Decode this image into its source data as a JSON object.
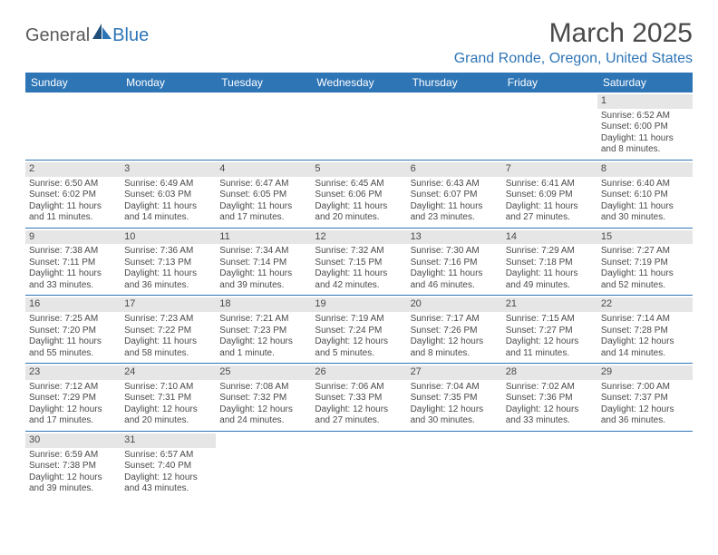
{
  "logo": {
    "text1": "General",
    "text2": "Blue"
  },
  "title": "March 2025",
  "location": "Grand Ronde, Oregon, United States",
  "colors": {
    "accent": "#2e75b6",
    "dayband": "#e6e6e6",
    "text": "#4a4a4a",
    "bg": "#ffffff"
  },
  "daynames": [
    "Sunday",
    "Monday",
    "Tuesday",
    "Wednesday",
    "Thursday",
    "Friday",
    "Saturday"
  ],
  "weeks": [
    [
      null,
      null,
      null,
      null,
      null,
      null,
      {
        "n": "1",
        "sr": "Sunrise: 6:52 AM",
        "ss": "Sunset: 6:00 PM",
        "d1": "Daylight: 11 hours",
        "d2": "and 8 minutes."
      }
    ],
    [
      {
        "n": "2",
        "sr": "Sunrise: 6:50 AM",
        "ss": "Sunset: 6:02 PM",
        "d1": "Daylight: 11 hours",
        "d2": "and 11 minutes."
      },
      {
        "n": "3",
        "sr": "Sunrise: 6:49 AM",
        "ss": "Sunset: 6:03 PM",
        "d1": "Daylight: 11 hours",
        "d2": "and 14 minutes."
      },
      {
        "n": "4",
        "sr": "Sunrise: 6:47 AM",
        "ss": "Sunset: 6:05 PM",
        "d1": "Daylight: 11 hours",
        "d2": "and 17 minutes."
      },
      {
        "n": "5",
        "sr": "Sunrise: 6:45 AM",
        "ss": "Sunset: 6:06 PM",
        "d1": "Daylight: 11 hours",
        "d2": "and 20 minutes."
      },
      {
        "n": "6",
        "sr": "Sunrise: 6:43 AM",
        "ss": "Sunset: 6:07 PM",
        "d1": "Daylight: 11 hours",
        "d2": "and 23 minutes."
      },
      {
        "n": "7",
        "sr": "Sunrise: 6:41 AM",
        "ss": "Sunset: 6:09 PM",
        "d1": "Daylight: 11 hours",
        "d2": "and 27 minutes."
      },
      {
        "n": "8",
        "sr": "Sunrise: 6:40 AM",
        "ss": "Sunset: 6:10 PM",
        "d1": "Daylight: 11 hours",
        "d2": "and 30 minutes."
      }
    ],
    [
      {
        "n": "9",
        "sr": "Sunrise: 7:38 AM",
        "ss": "Sunset: 7:11 PM",
        "d1": "Daylight: 11 hours",
        "d2": "and 33 minutes."
      },
      {
        "n": "10",
        "sr": "Sunrise: 7:36 AM",
        "ss": "Sunset: 7:13 PM",
        "d1": "Daylight: 11 hours",
        "d2": "and 36 minutes."
      },
      {
        "n": "11",
        "sr": "Sunrise: 7:34 AM",
        "ss": "Sunset: 7:14 PM",
        "d1": "Daylight: 11 hours",
        "d2": "and 39 minutes."
      },
      {
        "n": "12",
        "sr": "Sunrise: 7:32 AM",
        "ss": "Sunset: 7:15 PM",
        "d1": "Daylight: 11 hours",
        "d2": "and 42 minutes."
      },
      {
        "n": "13",
        "sr": "Sunrise: 7:30 AM",
        "ss": "Sunset: 7:16 PM",
        "d1": "Daylight: 11 hours",
        "d2": "and 46 minutes."
      },
      {
        "n": "14",
        "sr": "Sunrise: 7:29 AM",
        "ss": "Sunset: 7:18 PM",
        "d1": "Daylight: 11 hours",
        "d2": "and 49 minutes."
      },
      {
        "n": "15",
        "sr": "Sunrise: 7:27 AM",
        "ss": "Sunset: 7:19 PM",
        "d1": "Daylight: 11 hours",
        "d2": "and 52 minutes."
      }
    ],
    [
      {
        "n": "16",
        "sr": "Sunrise: 7:25 AM",
        "ss": "Sunset: 7:20 PM",
        "d1": "Daylight: 11 hours",
        "d2": "and 55 minutes."
      },
      {
        "n": "17",
        "sr": "Sunrise: 7:23 AM",
        "ss": "Sunset: 7:22 PM",
        "d1": "Daylight: 11 hours",
        "d2": "and 58 minutes."
      },
      {
        "n": "18",
        "sr": "Sunrise: 7:21 AM",
        "ss": "Sunset: 7:23 PM",
        "d1": "Daylight: 12 hours",
        "d2": "and 1 minute."
      },
      {
        "n": "19",
        "sr": "Sunrise: 7:19 AM",
        "ss": "Sunset: 7:24 PM",
        "d1": "Daylight: 12 hours",
        "d2": "and 5 minutes."
      },
      {
        "n": "20",
        "sr": "Sunrise: 7:17 AM",
        "ss": "Sunset: 7:26 PM",
        "d1": "Daylight: 12 hours",
        "d2": "and 8 minutes."
      },
      {
        "n": "21",
        "sr": "Sunrise: 7:15 AM",
        "ss": "Sunset: 7:27 PM",
        "d1": "Daylight: 12 hours",
        "d2": "and 11 minutes."
      },
      {
        "n": "22",
        "sr": "Sunrise: 7:14 AM",
        "ss": "Sunset: 7:28 PM",
        "d1": "Daylight: 12 hours",
        "d2": "and 14 minutes."
      }
    ],
    [
      {
        "n": "23",
        "sr": "Sunrise: 7:12 AM",
        "ss": "Sunset: 7:29 PM",
        "d1": "Daylight: 12 hours",
        "d2": "and 17 minutes."
      },
      {
        "n": "24",
        "sr": "Sunrise: 7:10 AM",
        "ss": "Sunset: 7:31 PM",
        "d1": "Daylight: 12 hours",
        "d2": "and 20 minutes."
      },
      {
        "n": "25",
        "sr": "Sunrise: 7:08 AM",
        "ss": "Sunset: 7:32 PM",
        "d1": "Daylight: 12 hours",
        "d2": "and 24 minutes."
      },
      {
        "n": "26",
        "sr": "Sunrise: 7:06 AM",
        "ss": "Sunset: 7:33 PM",
        "d1": "Daylight: 12 hours",
        "d2": "and 27 minutes."
      },
      {
        "n": "27",
        "sr": "Sunrise: 7:04 AM",
        "ss": "Sunset: 7:35 PM",
        "d1": "Daylight: 12 hours",
        "d2": "and 30 minutes."
      },
      {
        "n": "28",
        "sr": "Sunrise: 7:02 AM",
        "ss": "Sunset: 7:36 PM",
        "d1": "Daylight: 12 hours",
        "d2": "and 33 minutes."
      },
      {
        "n": "29",
        "sr": "Sunrise: 7:00 AM",
        "ss": "Sunset: 7:37 PM",
        "d1": "Daylight: 12 hours",
        "d2": "and 36 minutes."
      }
    ],
    [
      {
        "n": "30",
        "sr": "Sunrise: 6:59 AM",
        "ss": "Sunset: 7:38 PM",
        "d1": "Daylight: 12 hours",
        "d2": "and 39 minutes."
      },
      {
        "n": "31",
        "sr": "Sunrise: 6:57 AM",
        "ss": "Sunset: 7:40 PM",
        "d1": "Daylight: 12 hours",
        "d2": "and 43 minutes."
      },
      null,
      null,
      null,
      null,
      null
    ]
  ]
}
